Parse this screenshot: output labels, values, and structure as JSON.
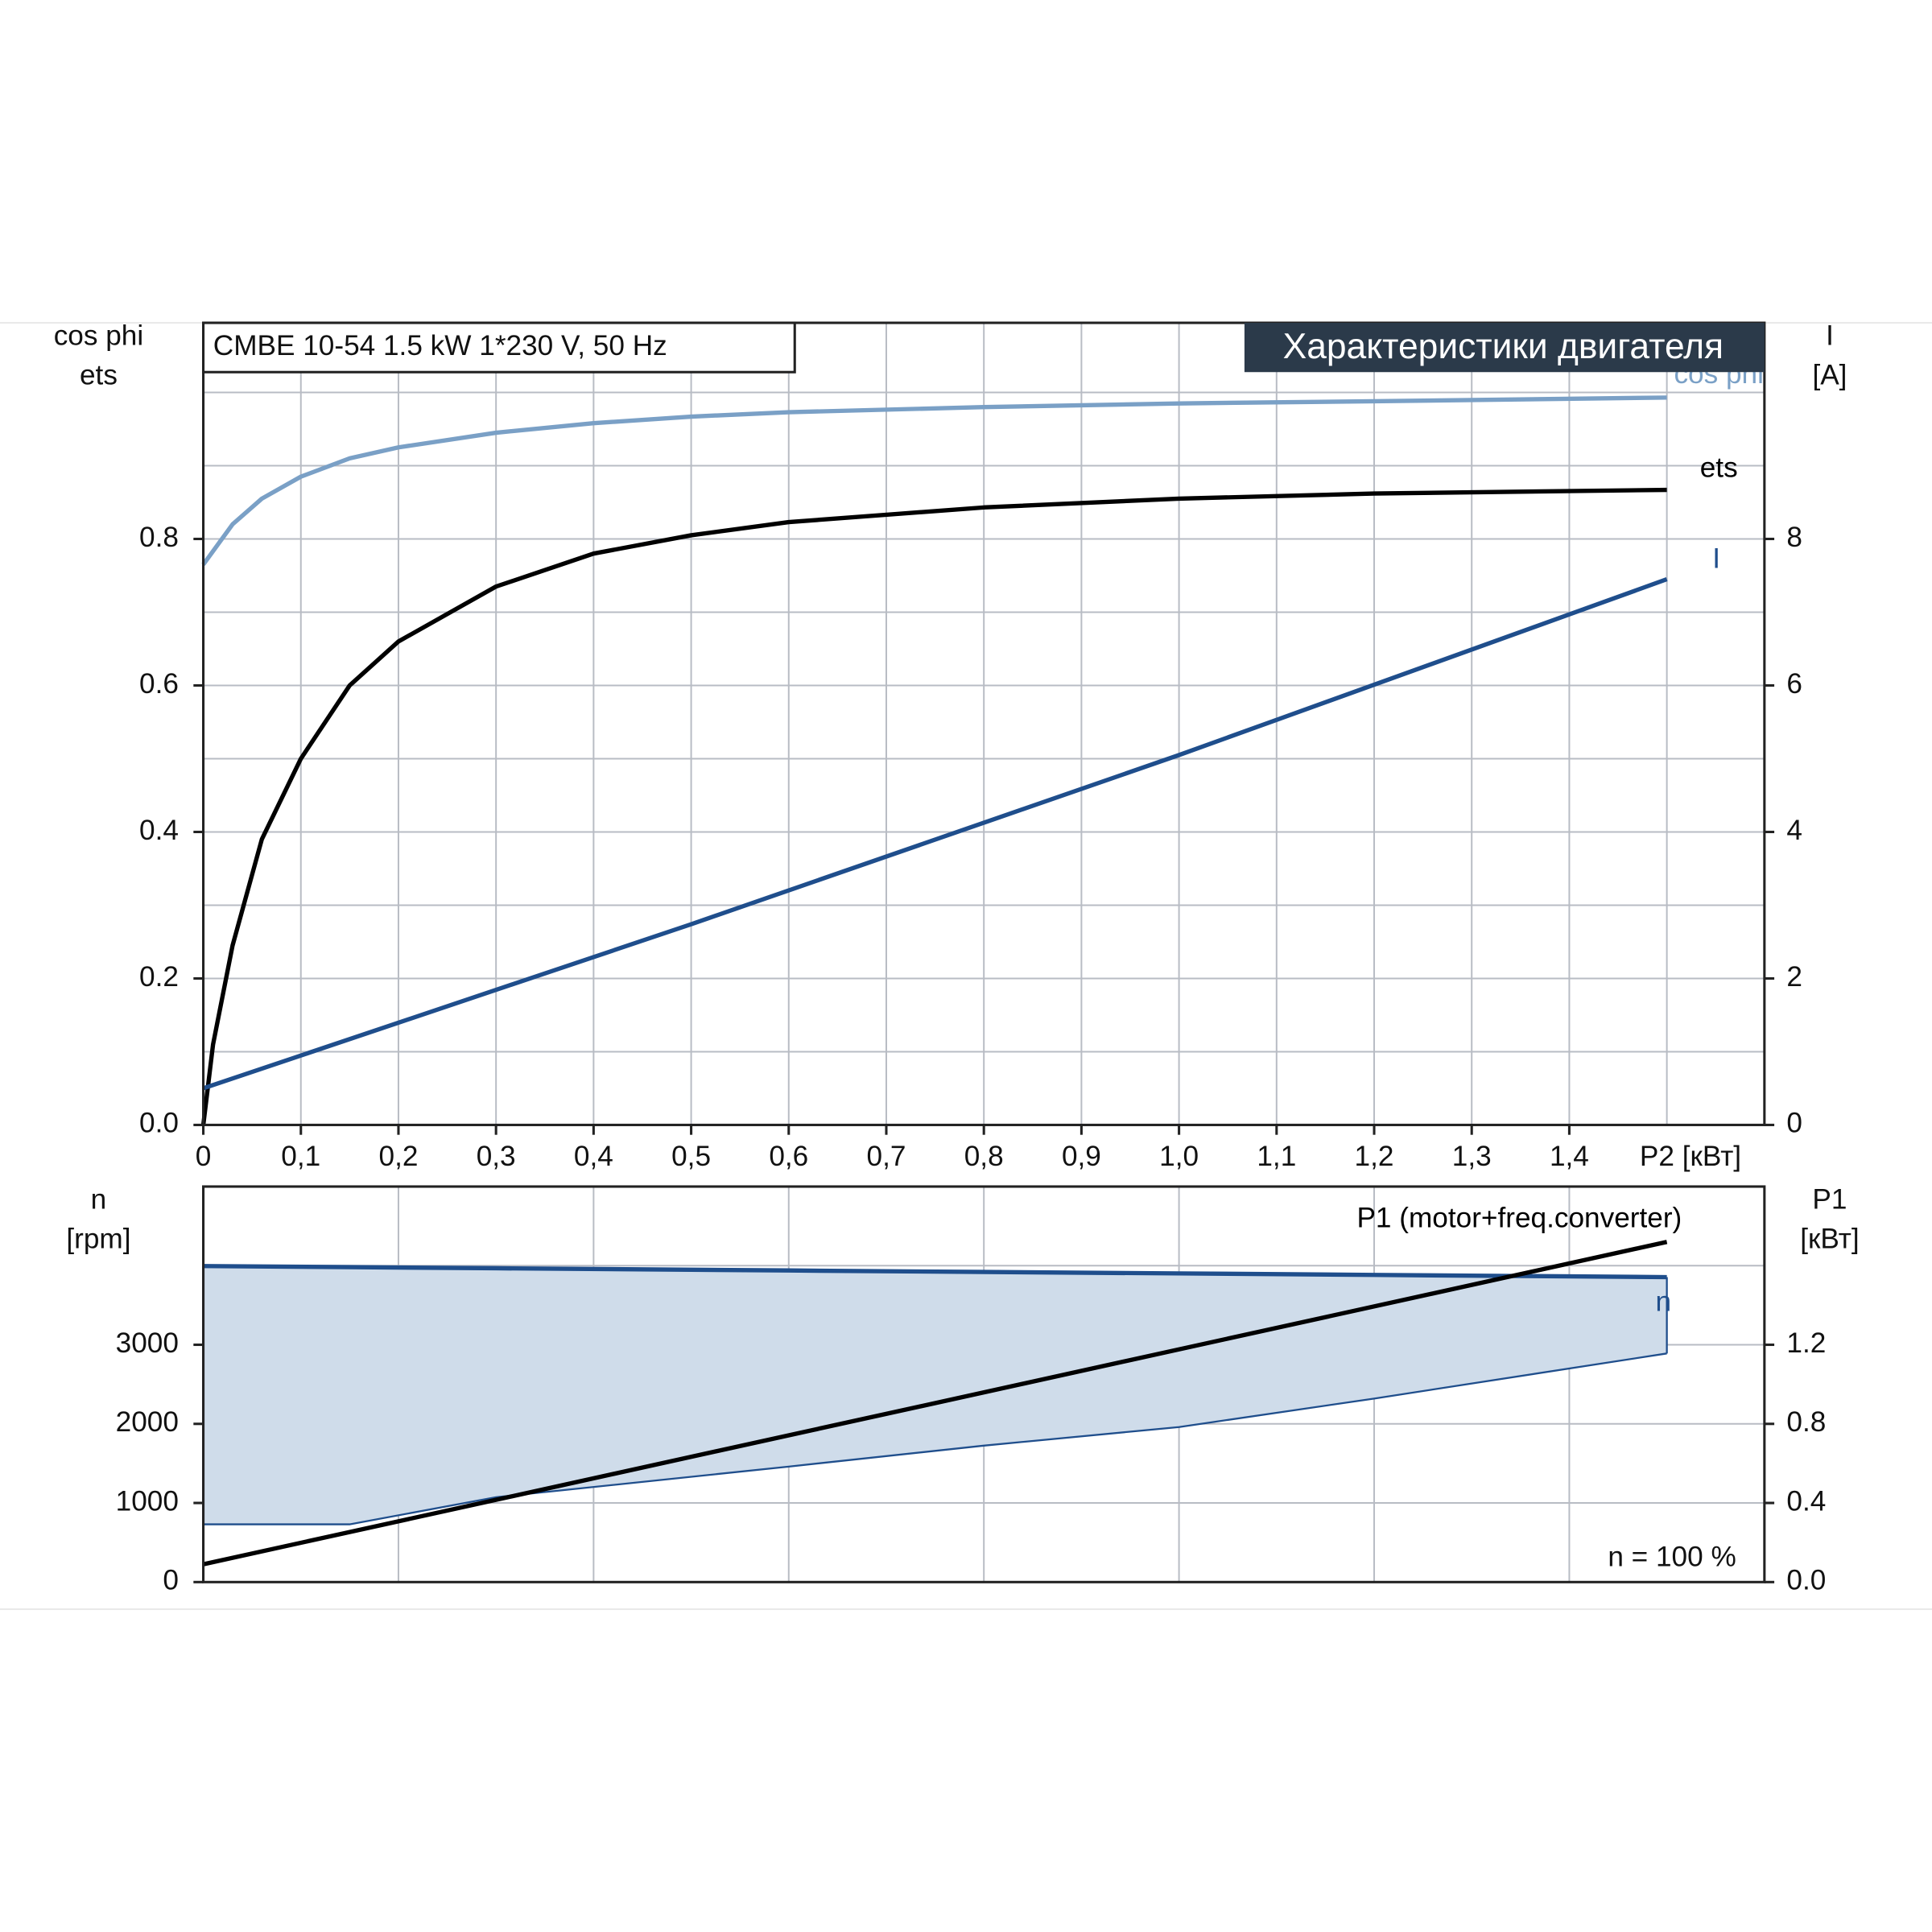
{
  "chart_data": [
    {
      "type": "line",
      "title": "CMBE 10-54   1.5 kW   1*230 V, 50 Hz",
      "subtitle": "Характеристики двигателя",
      "ylabel_lines": [
        "cos phi",
        "ets"
      ],
      "y2label_lines": [
        "I",
        "[A]"
      ],
      "xlabel": "P2 [кВт]",
      "xlim": [
        0,
        1.6
      ],
      "xticks": [
        0,
        {
          "value": 0.1,
          "label": "0,1"
        },
        {
          "value": 0.2,
          "label": "0,2"
        },
        {
          "value": 0.3,
          "label": "0,3"
        },
        {
          "value": 0.4,
          "label": "0,4"
        },
        {
          "value": 0.5,
          "label": "0,5"
        },
        {
          "value": 0.6,
          "label": "0,6"
        },
        {
          "value": 0.7,
          "label": "0,7"
        },
        {
          "value": 0.8,
          "label": "0,8"
        },
        {
          "value": 0.9,
          "label": "0,9"
        },
        {
          "value": 1.0,
          "label": "1,0"
        },
        {
          "value": 1.1,
          "label": "1,1"
        },
        {
          "value": 1.2,
          "label": "1,2"
        },
        {
          "value": 1.3,
          "label": "1,3"
        },
        {
          "value": 1.4,
          "label": "1,4"
        }
      ],
      "xgrid": [
        0.1,
        0.2,
        0.3,
        0.4,
        0.5,
        0.6,
        0.7,
        0.8,
        0.9,
        1.0,
        1.1,
        1.2,
        1.3,
        1.4,
        1.5
      ],
      "ylim": [
        0,
        1.1
      ],
      "yticks": [
        {
          "value": 0,
          "label": "0.0"
        },
        0.2,
        0.4,
        0.6,
        0.8
      ],
      "ygrid": [
        0.1,
        0.2,
        0.3,
        0.4,
        0.5,
        0.6,
        0.7,
        0.8,
        0.9,
        1.0
      ],
      "y2lim": [
        0,
        11
      ],
      "y2ticks": [
        0,
        2,
        4,
        6,
        8
      ],
      "grid": true,
      "series": [
        {
          "name": "cos phi",
          "color": "#7aa0c6",
          "x": [
            0,
            0.03,
            0.06,
            0.1,
            0.15,
            0.2,
            0.3,
            0.4,
            0.5,
            0.6,
            0.8,
            1.0,
            1.2,
            1.5
          ],
          "values": [
            0.765,
            0.82,
            0.855,
            0.885,
            0.91,
            0.925,
            0.945,
            0.958,
            0.967,
            0.973,
            0.98,
            0.985,
            0.988,
            0.993
          ]
        },
        {
          "name": "ets",
          "color": "#000000",
          "x": [
            0,
            0.01,
            0.03,
            0.06,
            0.1,
            0.15,
            0.2,
            0.3,
            0.4,
            0.5,
            0.6,
            0.8,
            1.0,
            1.2,
            1.5
          ],
          "values": [
            0,
            0.11,
            0.245,
            0.39,
            0.5,
            0.6,
            0.66,
            0.735,
            0.78,
            0.805,
            0.823,
            0.843,
            0.855,
            0.862,
            0.867
          ]
        },
        {
          "name": "I",
          "color": "#1f4e8c",
          "axis": "y2",
          "x": [
            0,
            0.5,
            1.0,
            1.5
          ],
          "values": [
            0.5,
            2.74,
            5.05,
            7.45
          ]
        }
      ]
    },
    {
      "type": "line",
      "ylabel_lines": [
        "n",
        "[rpm]"
      ],
      "y2label_lines": [
        "P1",
        "[кВт]"
      ],
      "xlim": [
        0,
        1.6
      ],
      "xgrid": [
        0.2,
        0.4,
        0.6,
        0.8,
        1.0,
        1.2,
        1.4
      ],
      "ylim": [
        0,
        5000
      ],
      "yticks": [
        0,
        1000,
        2000,
        3000
      ],
      "ygrid": [
        1000,
        2000,
        3000,
        4000
      ],
      "y2lim": [
        0,
        2.0
      ],
      "y2ticks": [
        {
          "value": 0,
          "label": "0.0"
        },
        0.4,
        0.8,
        1.2
      ],
      "grid": true,
      "annotation": "n = 100 %",
      "series": [
        {
          "name": "n",
          "color": "#1f4e8c",
          "fill": "#cfdcea",
          "x": [
            0,
            0.15,
            0.3,
            0.6,
            0.8,
            1.0,
            1.2,
            1.5
          ],
          "values": [
            3995,
            3981,
            3967,
            3939,
            3920,
            3902,
            3883,
            3855
          ],
          "lower": [
            730,
            730,
            1073,
            1460,
            1725,
            1960,
            2320,
            2890
          ]
        },
        {
          "name": "P1 (motor+freq.converter)",
          "color": "#000000",
          "axis": "y2",
          "x": [
            0,
            1.5
          ],
          "values": [
            0.09,
            1.72
          ]
        }
      ]
    }
  ]
}
